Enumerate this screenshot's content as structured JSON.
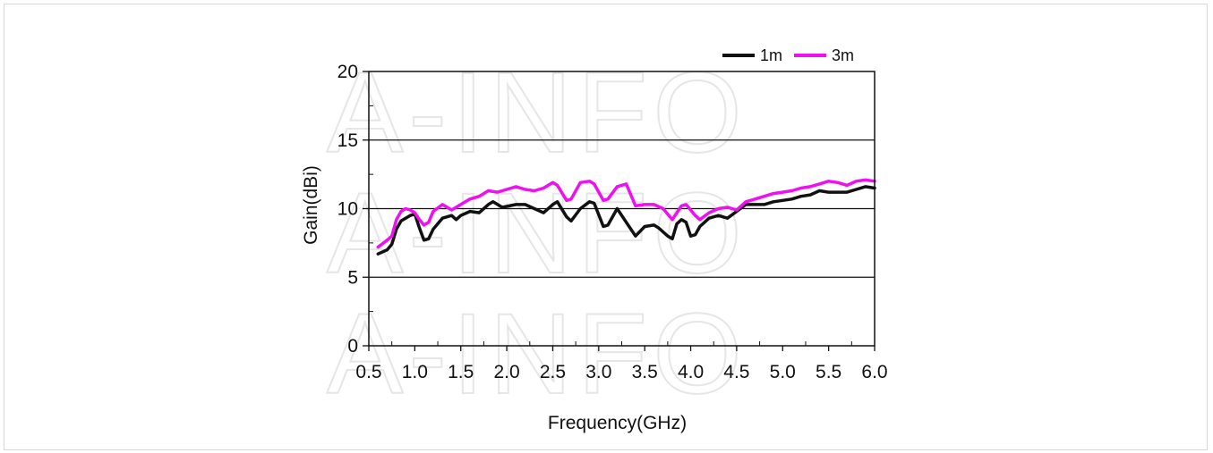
{
  "watermark": "A-INFO",
  "chart_data": {
    "type": "line",
    "title": "",
    "xlabel": "Frequency(GHz)",
    "ylabel": "Gain(dBi)",
    "xlim": [
      0.5,
      6.0
    ],
    "ylim": [
      0,
      20
    ],
    "x_ticks": [
      "0.5",
      "1.0",
      "1.5",
      "2.0",
      "2.5",
      "3.0",
      "3.5",
      "4.0",
      "4.5",
      "5.0",
      "5.5",
      "6.0"
    ],
    "y_ticks": [
      "0",
      "5",
      "10",
      "15",
      "20"
    ],
    "grid": "horizontal at 5, 10, 15",
    "legend_position": "top-right",
    "series": [
      {
        "name": "1m",
        "color": "#111111",
        "points": [
          [
            0.6,
            6.7
          ],
          [
            0.7,
            7.0
          ],
          [
            0.75,
            7.4
          ],
          [
            0.8,
            8.5
          ],
          [
            0.85,
            9.1
          ],
          [
            0.9,
            9.3
          ],
          [
            0.95,
            9.5
          ],
          [
            1.0,
            9.6
          ],
          [
            1.05,
            8.6
          ],
          [
            1.1,
            7.7
          ],
          [
            1.15,
            7.8
          ],
          [
            1.2,
            8.5
          ],
          [
            1.3,
            9.3
          ],
          [
            1.4,
            9.5
          ],
          [
            1.45,
            9.2
          ],
          [
            1.5,
            9.5
          ],
          [
            1.6,
            9.8
          ],
          [
            1.7,
            9.7
          ],
          [
            1.8,
            10.3
          ],
          [
            1.85,
            10.5
          ],
          [
            1.95,
            10.1
          ],
          [
            2.1,
            10.3
          ],
          [
            2.2,
            10.3
          ],
          [
            2.3,
            10.0
          ],
          [
            2.4,
            9.7
          ],
          [
            2.5,
            10.3
          ],
          [
            2.55,
            10.5
          ],
          [
            2.65,
            9.4
          ],
          [
            2.7,
            9.1
          ],
          [
            2.8,
            10.0
          ],
          [
            2.9,
            10.5
          ],
          [
            2.95,
            10.4
          ],
          [
            3.05,
            8.7
          ],
          [
            3.1,
            8.8
          ],
          [
            3.2,
            10.0
          ],
          [
            3.3,
            9.0
          ],
          [
            3.4,
            8.0
          ],
          [
            3.5,
            8.7
          ],
          [
            3.6,
            8.8
          ],
          [
            3.65,
            8.6
          ],
          [
            3.75,
            8.0
          ],
          [
            3.8,
            7.8
          ],
          [
            3.85,
            8.9
          ],
          [
            3.9,
            9.2
          ],
          [
            3.95,
            9.0
          ],
          [
            4.0,
            8.0
          ],
          [
            4.05,
            8.1
          ],
          [
            4.1,
            8.7
          ],
          [
            4.2,
            9.3
          ],
          [
            4.3,
            9.5
          ],
          [
            4.4,
            9.3
          ],
          [
            4.5,
            9.8
          ],
          [
            4.6,
            10.3
          ],
          [
            4.7,
            10.3
          ],
          [
            4.8,
            10.3
          ],
          [
            4.9,
            10.5
          ],
          [
            5.0,
            10.6
          ],
          [
            5.1,
            10.7
          ],
          [
            5.2,
            10.9
          ],
          [
            5.3,
            11.0
          ],
          [
            5.4,
            11.3
          ],
          [
            5.5,
            11.2
          ],
          [
            5.6,
            11.2
          ],
          [
            5.7,
            11.2
          ],
          [
            5.8,
            11.4
          ],
          [
            5.9,
            11.6
          ],
          [
            6.0,
            11.5
          ]
        ]
      },
      {
        "name": "3m",
        "color": "#ee10ee",
        "points": [
          [
            0.6,
            7.2
          ],
          [
            0.7,
            7.7
          ],
          [
            0.75,
            8.0
          ],
          [
            0.8,
            9.2
          ],
          [
            0.85,
            9.8
          ],
          [
            0.9,
            10.0
          ],
          [
            0.95,
            9.9
          ],
          [
            1.0,
            9.7
          ],
          [
            1.05,
            9.2
          ],
          [
            1.1,
            8.8
          ],
          [
            1.15,
            9.0
          ],
          [
            1.2,
            9.8
          ],
          [
            1.3,
            10.3
          ],
          [
            1.4,
            9.9
          ],
          [
            1.5,
            10.3
          ],
          [
            1.6,
            10.7
          ],
          [
            1.7,
            10.9
          ],
          [
            1.8,
            11.3
          ],
          [
            1.9,
            11.2
          ],
          [
            2.0,
            11.4
          ],
          [
            2.1,
            11.6
          ],
          [
            2.2,
            11.4
          ],
          [
            2.3,
            11.3
          ],
          [
            2.4,
            11.5
          ],
          [
            2.5,
            11.9
          ],
          [
            2.55,
            11.7
          ],
          [
            2.65,
            10.6
          ],
          [
            2.7,
            10.7
          ],
          [
            2.8,
            11.9
          ],
          [
            2.9,
            12.0
          ],
          [
            2.95,
            11.8
          ],
          [
            3.05,
            10.6
          ],
          [
            3.1,
            10.7
          ],
          [
            3.2,
            11.6
          ],
          [
            3.3,
            11.8
          ],
          [
            3.4,
            10.2
          ],
          [
            3.5,
            10.3
          ],
          [
            3.6,
            10.3
          ],
          [
            3.7,
            10.0
          ],
          [
            3.8,
            9.2
          ],
          [
            3.9,
            10.2
          ],
          [
            3.95,
            10.3
          ],
          [
            4.05,
            9.5
          ],
          [
            4.1,
            9.2
          ],
          [
            4.2,
            9.7
          ],
          [
            4.3,
            10.0
          ],
          [
            4.4,
            10.1
          ],
          [
            4.5,
            9.9
          ],
          [
            4.6,
            10.5
          ],
          [
            4.7,
            10.7
          ],
          [
            4.8,
            10.9
          ],
          [
            4.9,
            11.1
          ],
          [
            5.0,
            11.2
          ],
          [
            5.1,
            11.3
          ],
          [
            5.2,
            11.5
          ],
          [
            5.3,
            11.6
          ],
          [
            5.4,
            11.8
          ],
          [
            5.5,
            12.0
          ],
          [
            5.6,
            11.9
          ],
          [
            5.7,
            11.7
          ],
          [
            5.8,
            12.0
          ],
          [
            5.9,
            12.1
          ],
          [
            6.0,
            12.0
          ]
        ]
      }
    ]
  }
}
